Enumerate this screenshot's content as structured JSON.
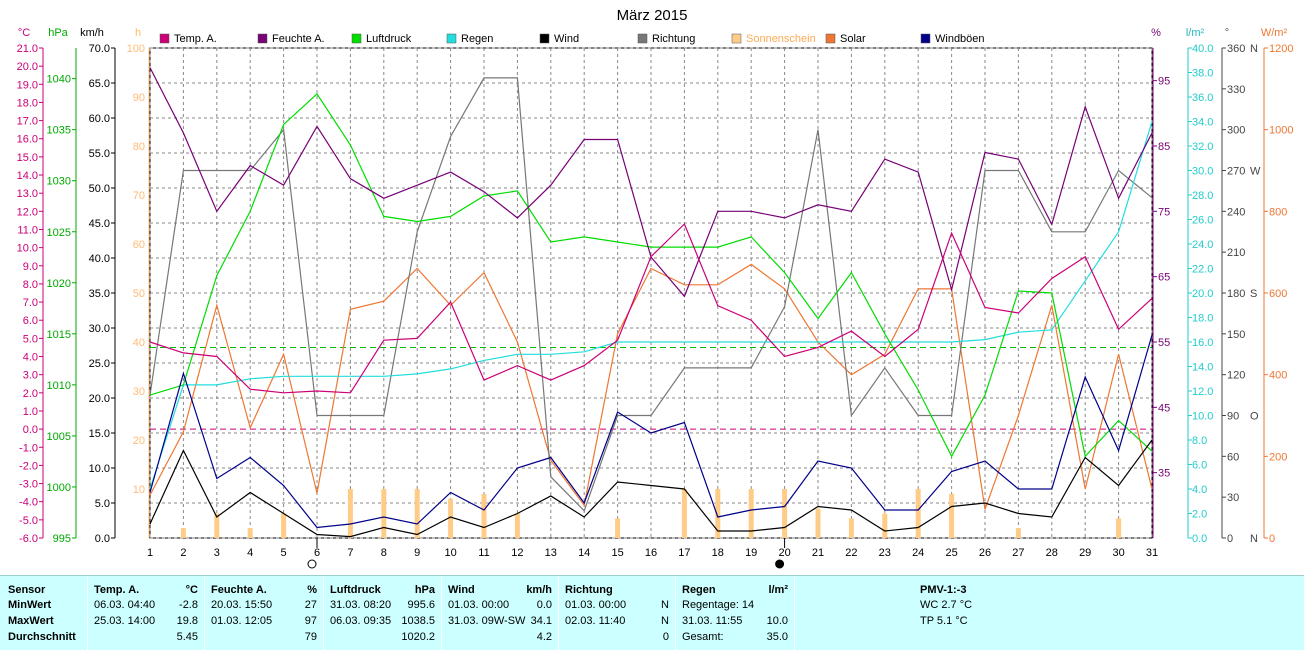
{
  "title": "März 2015",
  "legend": [
    {
      "label": "Temp. A.",
      "color": "#cc0077"
    },
    {
      "label": "Feuchte A.",
      "color": "#770077"
    },
    {
      "label": "Luftdruck",
      "color": "#00dd00"
    },
    {
      "label": "Regen",
      "color": "#22dddd"
    },
    {
      "label": "Wind",
      "color": "#000000"
    },
    {
      "label": "Richtung",
      "color": "#777777"
    },
    {
      "label": "Sonnenschein",
      "color": "#ffcc88"
    },
    {
      "label": "Solar",
      "color": "#ee7733"
    },
    {
      "label": "Windböen",
      "color": "#000088"
    }
  ],
  "axis_units": {
    "temp": "°C",
    "pressure": "hPa",
    "wind": "km/h",
    "sun": "h",
    "humidity": "%",
    "rain": "l/m²",
    "direction": "°",
    "solar": "W/m²"
  },
  "direction_labels": [
    {
      "deg": 360,
      "label": "N"
    },
    {
      "deg": 270,
      "label": "W"
    },
    {
      "deg": 180,
      "label": "S"
    },
    {
      "deg": 90,
      "label": "O"
    },
    {
      "deg": 0,
      "label": "N"
    }
  ],
  "chart_data": {
    "type": "line",
    "title": "März 2015",
    "x": [
      1,
      2,
      3,
      4,
      5,
      6,
      7,
      8,
      9,
      10,
      11,
      12,
      13,
      14,
      15,
      16,
      17,
      18,
      19,
      20,
      21,
      22,
      23,
      24,
      25,
      26,
      27,
      28,
      29,
      30,
      31
    ],
    "moon_phases": [
      {
        "day": 6,
        "phase": "full"
      },
      {
        "day": 20,
        "phase": "new"
      }
    ],
    "axes": {
      "temp": {
        "unit": "°C",
        "range": [
          -6,
          21
        ],
        "ticks": [
          -6,
          -5,
          -4,
          -3,
          -2,
          -1,
          0,
          1,
          2,
          3,
          4,
          5,
          6,
          7,
          8,
          9,
          10,
          11,
          12,
          13,
          14,
          15,
          16,
          17,
          18,
          19,
          20,
          21
        ]
      },
      "pressure": {
        "unit": "hPa",
        "range": [
          995,
          1043
        ],
        "ticks": [
          995,
          1000,
          1005,
          1010,
          1015,
          1020,
          1025,
          1030,
          1035,
          1040
        ]
      },
      "wind": {
        "unit": "km/h",
        "range": [
          0,
          70
        ],
        "ticks": [
          0,
          5,
          10,
          15,
          20,
          25,
          30,
          35,
          40,
          45,
          50,
          55,
          60,
          65,
          70
        ]
      },
      "sun": {
        "unit": "h",
        "range": [
          0,
          100
        ],
        "ticks": [
          10,
          20,
          30,
          40,
          50,
          60,
          70,
          80,
          90,
          100
        ]
      },
      "humidity": {
        "unit": "%",
        "range": [
          25,
          100
        ],
        "ticks": [
          35,
          45,
          55,
          65,
          75,
          85,
          95
        ]
      },
      "rain": {
        "unit": "l/m²",
        "range": [
          0,
          40
        ],
        "ticks": [
          0,
          2,
          4,
          6,
          8,
          10,
          12,
          14,
          16,
          18,
          20,
          22,
          24,
          26,
          28,
          30,
          32,
          34,
          36,
          38,
          40
        ]
      },
      "direction": {
        "unit": "°",
        "range": [
          0,
          360
        ],
        "ticks": [
          0,
          30,
          60,
          90,
          120,
          150,
          180,
          210,
          240,
          270,
          300,
          330,
          360
        ]
      },
      "solar": {
        "unit": "W/m²",
        "range": [
          0,
          1200
        ],
        "ticks": [
          0,
          200,
          400,
          600,
          800,
          1000,
          1200
        ]
      }
    },
    "reference_lines": [
      {
        "axis": "temp",
        "value": 0,
        "style": "dashed",
        "color": "#cc0077"
      },
      {
        "axis": "temp",
        "value": 4.5,
        "style": "dashed",
        "color": "#00bb00"
      }
    ],
    "series": [
      {
        "name": "Sonnenschein",
        "axis": "sun",
        "type": "bar",
        "color": "#ffcc88",
        "values": [
          0,
          2,
          5,
          2,
          5,
          0,
          10,
          10,
          10,
          8,
          9,
          5,
          0,
          0,
          4,
          0,
          10,
          10,
          10,
          10,
          6,
          4,
          5,
          10,
          9,
          0,
          2,
          0,
          0,
          4,
          0
        ]
      },
      {
        "name": "Solar",
        "axis": "solar",
        "color": "#ee7733",
        "values": [
          105,
          260,
          570,
          270,
          450,
          110,
          560,
          580,
          660,
          570,
          650,
          480,
          190,
          80,
          500,
          660,
          620,
          620,
          670,
          610,
          480,
          400,
          450,
          610,
          610,
          70,
          300,
          570,
          120,
          450,
          120
        ]
      },
      {
        "name": "Richtung",
        "axis": "direction",
        "color": "#777777",
        "values": [
          105,
          270,
          270,
          270,
          300,
          90,
          90,
          90,
          225,
          295,
          338,
          338,
          45,
          20,
          90,
          90,
          125,
          125,
          125,
          170,
          300,
          90,
          125,
          90,
          90,
          270,
          270,
          225,
          225,
          270,
          250
        ]
      },
      {
        "name": "Regen",
        "axis": "rain",
        "color": "#22dddd",
        "values": [
          4.0,
          12.5,
          12.5,
          13.0,
          13.2,
          13.2,
          13.2,
          13.2,
          13.4,
          13.8,
          14.5,
          15.0,
          15.0,
          15.2,
          16.0,
          16.0,
          16.0,
          16.0,
          16.0,
          16.0,
          16.0,
          16.0,
          16.0,
          16.0,
          16.0,
          16.2,
          16.8,
          17.0,
          21.0,
          25.0,
          34.0
        ]
      },
      {
        "name": "Luftdruck",
        "axis": "pressure",
        "color": "#00dd00",
        "values": [
          1009.0,
          1010.0,
          1020.7,
          1027.0,
          1035.5,
          1038.5,
          1033.5,
          1026.5,
          1026.0,
          1026.5,
          1028.5,
          1029.0,
          1024.0,
          1024.5,
          1024.0,
          1023.5,
          1023.5,
          1023.5,
          1024.5,
          1021.0,
          1016.5,
          1021.0,
          1015.0,
          1009.5,
          1003.0,
          1009.0,
          1019.2,
          1019.0,
          1003.0,
          1006.5,
          1003.5
        ]
      },
      {
        "name": "Feuchte A.",
        "axis": "humidity",
        "color": "#770077",
        "values": [
          97,
          87,
          75,
          82,
          79,
          88,
          80,
          77,
          79,
          81,
          78,
          74,
          79,
          86,
          86,
          68,
          62,
          75,
          75,
          74,
          76,
          75,
          83,
          81,
          63,
          84,
          83,
          73,
          91,
          77,
          87
        ]
      },
      {
        "name": "Temp. A.",
        "axis": "temp",
        "color": "#cc0077",
        "values": [
          4.8,
          4.2,
          4.0,
          2.2,
          2.0,
          2.1,
          2.0,
          4.9,
          5.0,
          7.0,
          2.7,
          3.5,
          2.7,
          3.5,
          4.9,
          9.5,
          11.3,
          6.8,
          6.0,
          4.0,
          4.5,
          5.4,
          4.0,
          5.5,
          10.8,
          6.7,
          6.4,
          8.3,
          9.5,
          5.5,
          7.2
        ]
      },
      {
        "name": "Windböen",
        "axis": "wind",
        "color": "#000088",
        "values": [
          6.5,
          23.5,
          8.5,
          11.5,
          7.5,
          1.5,
          2.0,
          3.0,
          2.0,
          6.5,
          4.0,
          10.0,
          11.5,
          5.0,
          18.0,
          15.0,
          16.5,
          3.0,
          4.0,
          4.5,
          11.0,
          10.0,
          4.0,
          4.0,
          9.5,
          11.0,
          7.0,
          7.0,
          23.0,
          12.5,
          29.0
        ]
      },
      {
        "name": "Wind",
        "axis": "wind",
        "color": "#000000",
        "values": [
          2.0,
          12.5,
          3.0,
          6.5,
          3.5,
          0.5,
          0.2,
          1.5,
          0.5,
          3.0,
          1.5,
          3.5,
          6.0,
          3.0,
          8.0,
          7.5,
          7.0,
          1.0,
          1.0,
          1.5,
          4.5,
          4.0,
          1.0,
          1.5,
          4.5,
          5.0,
          3.5,
          3.0,
          11.5,
          7.5,
          14.0
        ]
      }
    ]
  },
  "stats": {
    "sensor": {
      "header": "Sensor",
      "rows": [
        "MinWert",
        "MaxWert",
        "Durchschnitt"
      ]
    },
    "temp": {
      "header": "Temp. A.",
      "unit": "°C",
      "min_time": "06.03. 04:40",
      "min_val": "-2.8",
      "max_time": "25.03. 14:00",
      "max_val": "19.8",
      "avg": "5.45"
    },
    "hum": {
      "header": "Feuchte A.",
      "unit": "%",
      "min_time": "20.03. 15:50",
      "min_val": "27",
      "max_time": "01.03. 12:05",
      "max_val": "97",
      "avg": "79"
    },
    "press": {
      "header": "Luftdruck",
      "unit": "hPa",
      "min_time": "31.03. 08:20",
      "min_val": "995.6",
      "max_time": "06.03. 09:35",
      "max_val": "1038.5",
      "avg": "1020.2"
    },
    "wind": {
      "header": "Wind",
      "unit": "km/h",
      "min_time": "01.03. 00:00",
      "min_val": "0.0",
      "max_time": "31.03. 09W-SW",
      "max_val": "34.1",
      "avg": "4.2"
    },
    "dir": {
      "header": "Richtung",
      "min_time": "01.03. 00:00",
      "min_val": "N",
      "max_time": "02.03. 11:40",
      "max_val": "N",
      "avg": "0"
    },
    "rain": {
      "header": "Regen",
      "unit": "l/m²",
      "r1": "Regentage: 14",
      "r2": "31.03. 11:55",
      "r2v": "10.0",
      "r3": "Gesamt:",
      "r3v": "35.0"
    },
    "pmv": {
      "header": "PMV-1:-3",
      "r1": "WC 2.7 °C",
      "r2": "TP 5.1 °C"
    }
  }
}
